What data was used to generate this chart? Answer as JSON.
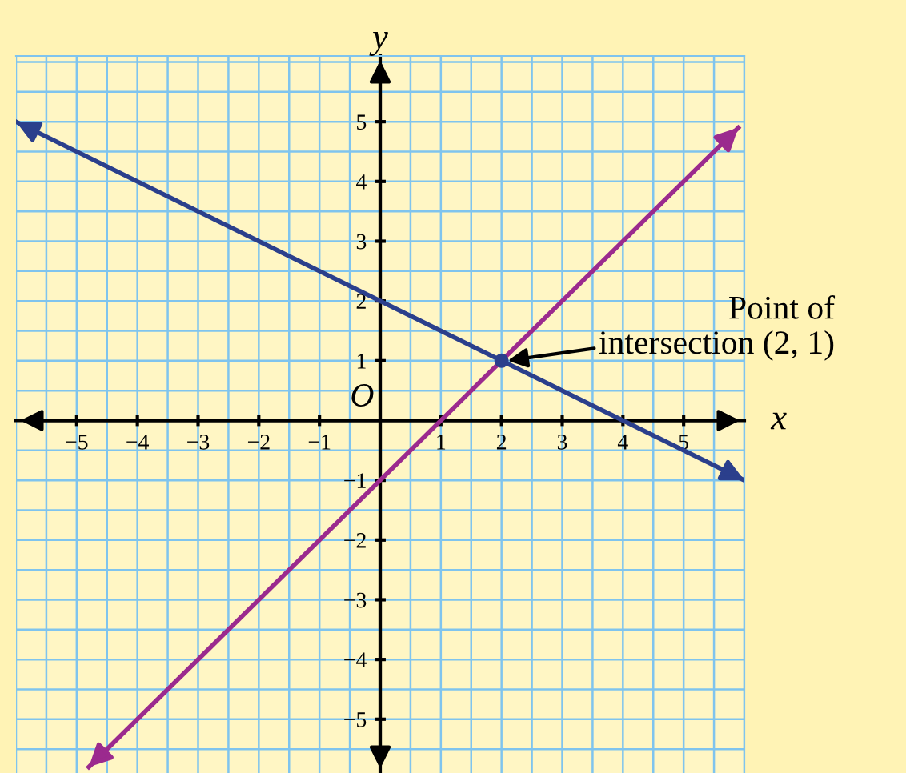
{
  "chart_data": {
    "type": "line",
    "xlabel": "x",
    "ylabel": "y",
    "xlim": [
      -6,
      6
    ],
    "ylim": [
      -5.9,
      6.1
    ],
    "xticks": [
      {
        "value": -5,
        "label": "−5"
      },
      {
        "value": -4,
        "label": "−4"
      },
      {
        "value": -3,
        "label": "−3"
      },
      {
        "value": -2,
        "label": "−2"
      },
      {
        "value": -1,
        "label": "−1"
      },
      1,
      2,
      3,
      4,
      5
    ],
    "yticks": [
      {
        "value": -5,
        "label": "−5"
      },
      {
        "value": -4,
        "label": "−4"
      },
      {
        "value": -3,
        "label": "−3"
      },
      {
        "value": -2,
        "label": "−2"
      },
      {
        "value": -1,
        "label": "−1"
      },
      1,
      2,
      3,
      4,
      5
    ],
    "grid": true,
    "marker": "none",
    "line_style": "solid",
    "series": [
      {
        "color": "#2b3f8c",
        "x": [
          -6,
          6
        ],
        "values": [
          5,
          -1
        ]
      },
      {
        "color": "#9b2a8e",
        "x": [
          -4.8,
          5.9
        ],
        "values": [
          -5.8,
          4.9
        ]
      },
      {
        "type": "scatter",
        "marker": "circle",
        "color": "#2b3f8c",
        "x": [
          2
        ],
        "values": [
          1
        ]
      }
    ],
    "annotations": [
      "O",
      {
        "text": "Point of\nintersection (2, 1)",
        "x": 2,
        "y": 1
      }
    ]
  }
}
